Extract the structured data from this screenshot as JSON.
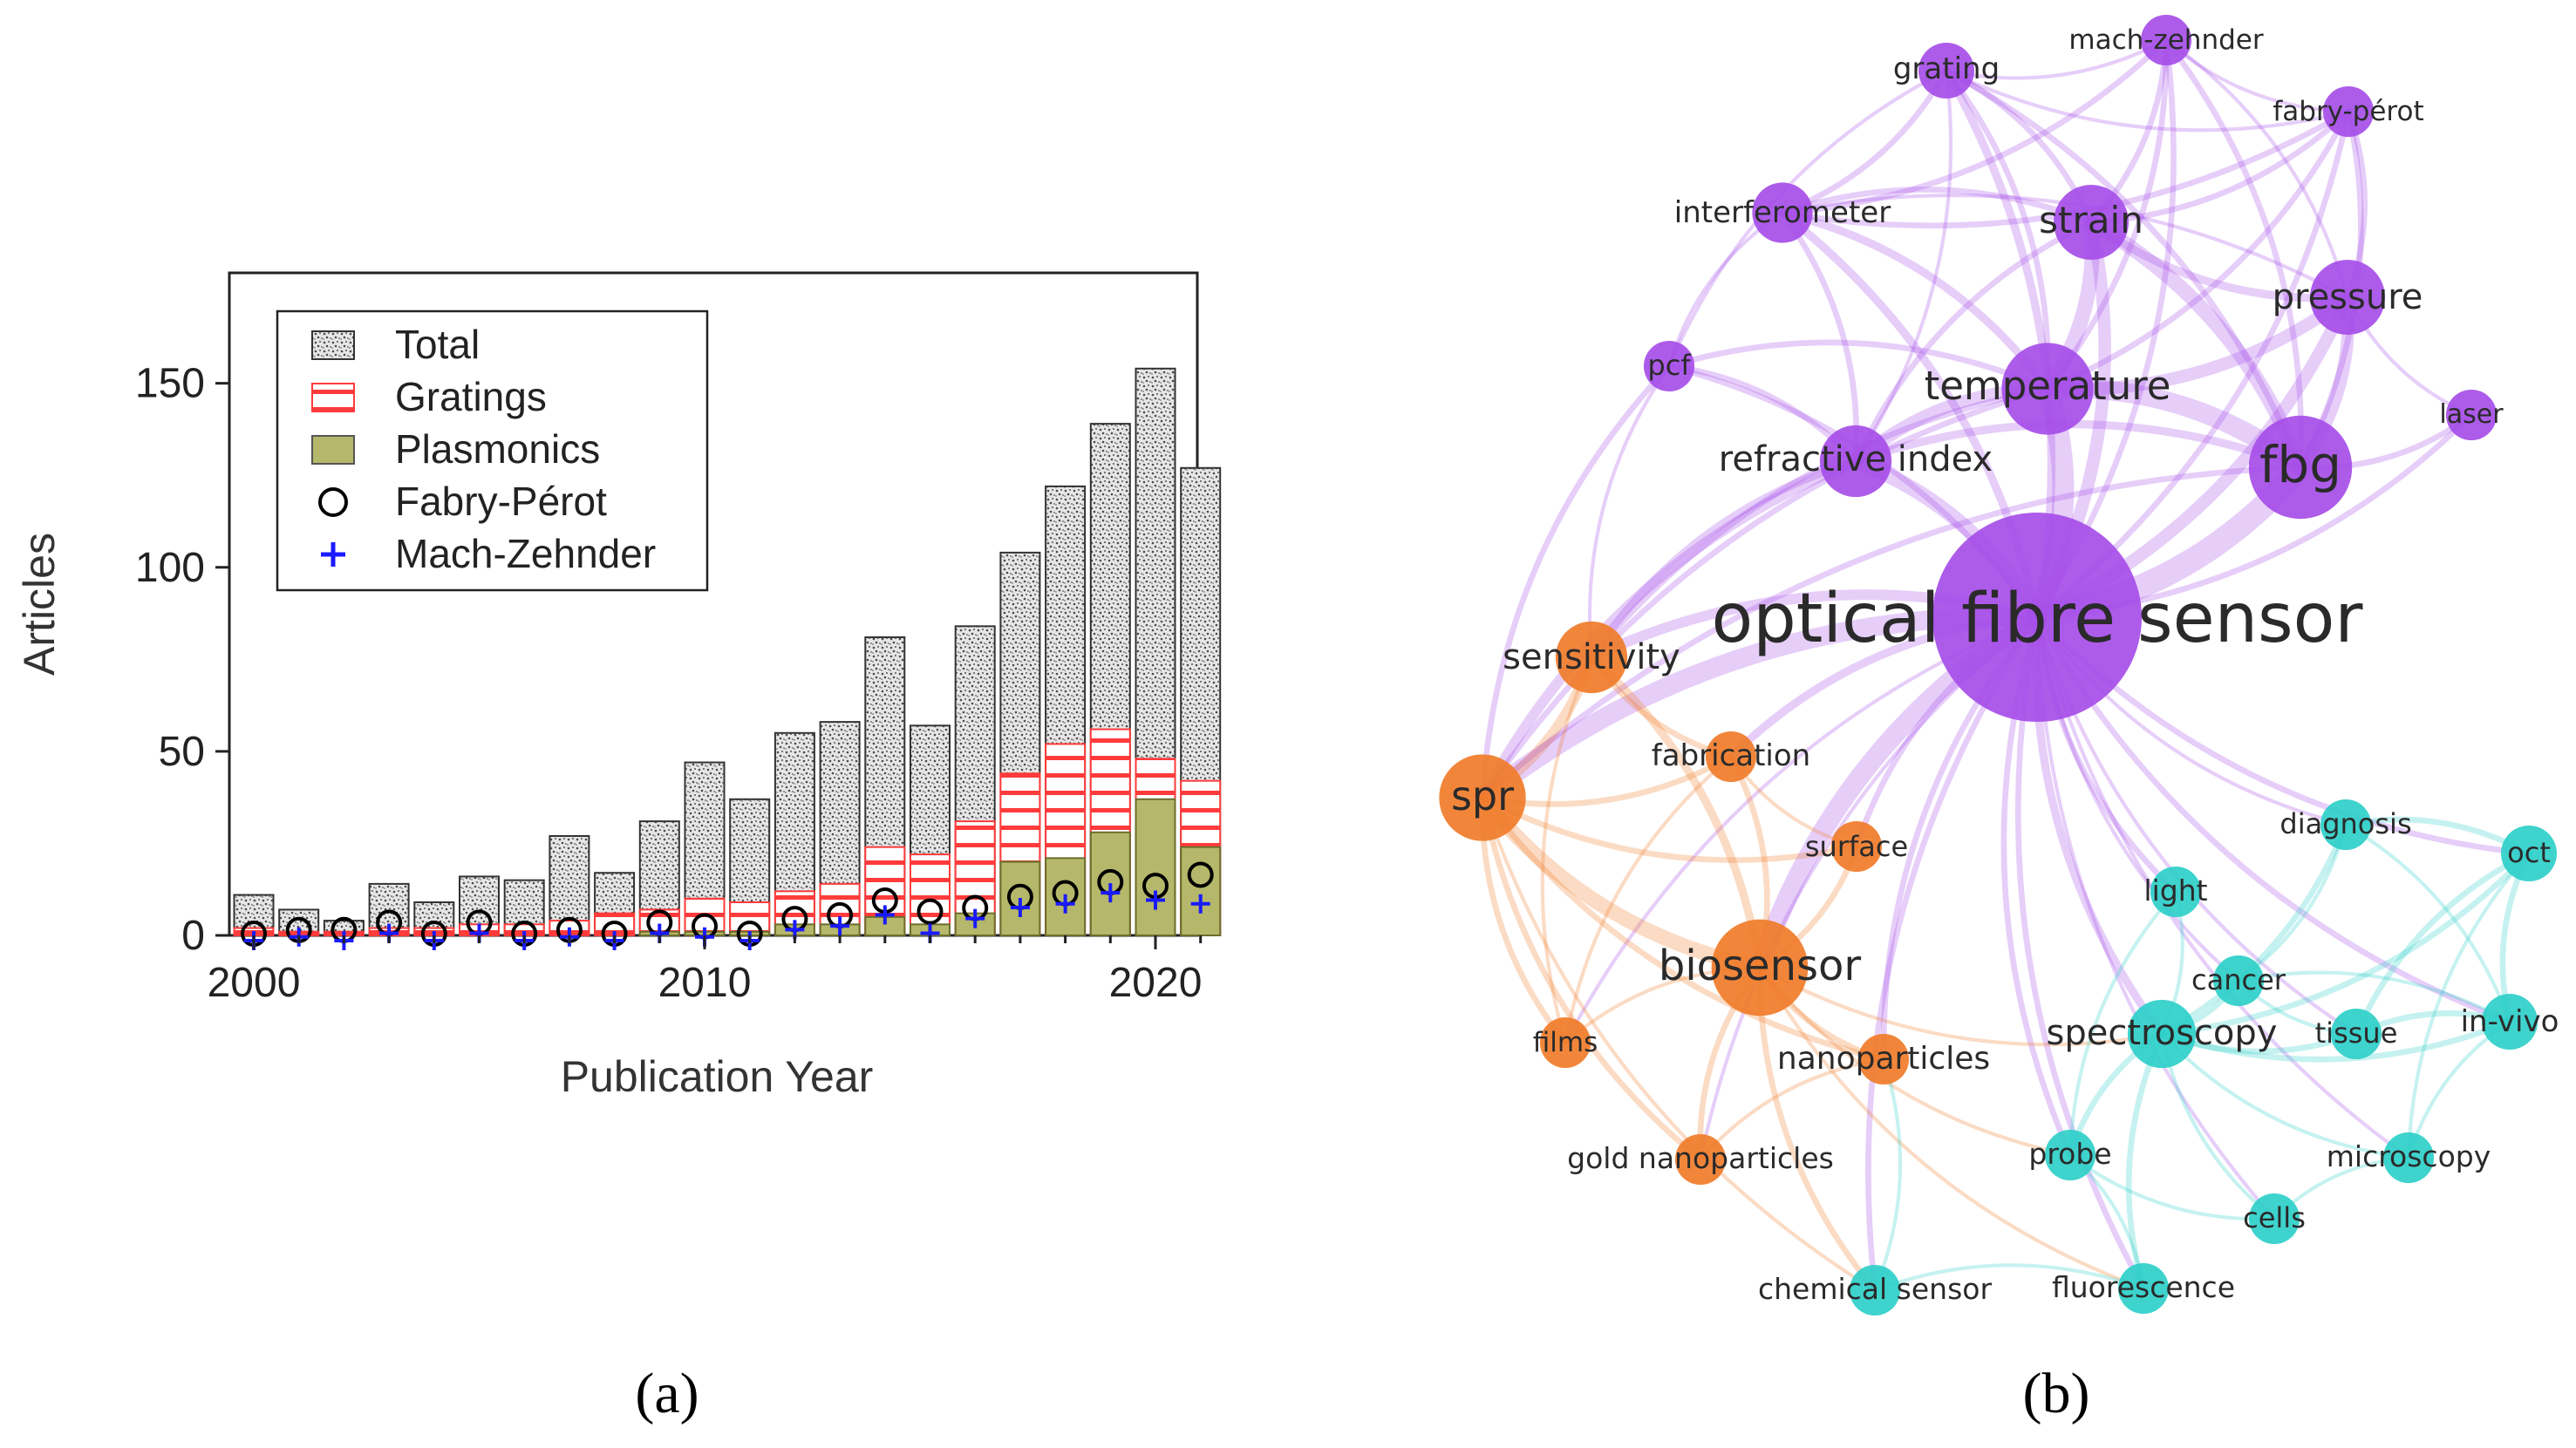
{
  "panel_a": {
    "label": "(a)"
  },
  "panel_b": {
    "label": "(b)"
  },
  "chart_data": {
    "type": "bar",
    "categories": [
      "2000",
      "2001",
      "2002",
      "2003",
      "2004",
      "2005",
      "2006",
      "2007",
      "2008",
      "2009",
      "2010",
      "2011",
      "2012",
      "2013",
      "2014",
      "2015",
      "2016",
      "2017",
      "2018",
      "2019",
      "2020",
      "2021"
    ],
    "x_ticks": [
      "2000",
      "2010",
      "2020"
    ],
    "y_ticks": [
      "0",
      "50",
      "100",
      "150"
    ],
    "xlabel": "Publication Year",
    "ylabel": "Articles",
    "ylim": [
      0,
      180
    ],
    "series": [
      {
        "name": "Total",
        "kind": "bar",
        "color": "#bdbdbd",
        "values": [
          11,
          7,
          4,
          14,
          9,
          16,
          15,
          27,
          17,
          31,
          47,
          37,
          55,
          58,
          81,
          57,
          84,
          104,
          122,
          139,
          154,
          127
        ]
      },
      {
        "name": "Gratings",
        "kind": "bar",
        "color": "#ff3b3b",
        "values": [
          2,
          1,
          1,
          2,
          2,
          3,
          3,
          4,
          6,
          7,
          10,
          9,
          12,
          14,
          24,
          22,
          31,
          44,
          52,
          56,
          48,
          42
        ]
      },
      {
        "name": "Plasmonics",
        "kind": "bar",
        "color": "#b5b76a",
        "values": [
          0,
          0,
          0,
          0,
          0,
          0,
          0,
          0,
          0,
          1,
          1,
          1,
          3,
          3,
          5,
          3,
          6,
          20,
          21,
          28,
          37,
          24
        ]
      },
      {
        "name": "Fabry-Pérot",
        "kind": "marker",
        "color": "#000000",
        "values": [
          0,
          1,
          1,
          3,
          0,
          3,
          0,
          1,
          0,
          3,
          2,
          0,
          4,
          5,
          9,
          6,
          7,
          10,
          11,
          14,
          13,
          16
        ]
      },
      {
        "name": "Mach-Zehnder",
        "kind": "marker",
        "color": "#1a1aff",
        "values": [
          0,
          1,
          0,
          2,
          0,
          2,
          0,
          1,
          0,
          2,
          1,
          0,
          3,
          4,
          7,
          2,
          6,
          9,
          10,
          13,
          11,
          10
        ]
      }
    ]
  },
  "network": {
    "colors": {
      "purple": "#a64ee8",
      "orange": "#f07c2a",
      "cyan": "#2ecfc9"
    },
    "nodes": [
      {
        "label": "optical fibre sensor",
        "group": "purple",
        "weight": 100
      },
      {
        "label": "fbg",
        "group": "purple",
        "weight": 20
      },
      {
        "label": "temperature",
        "group": "purple",
        "weight": 15
      },
      {
        "label": "strain",
        "group": "purple",
        "weight": 9
      },
      {
        "label": "pressure",
        "group": "purple",
        "weight": 9
      },
      {
        "label": "refractive index",
        "group": "purple",
        "weight": 8
      },
      {
        "label": "interferometer",
        "group": "purple",
        "weight": 5
      },
      {
        "label": "grating",
        "group": "purple",
        "weight": 4
      },
      {
        "label": "mach-zehnder",
        "group": "purple",
        "weight": 3
      },
      {
        "label": "fabry-pérot",
        "group": "purple",
        "weight": 3
      },
      {
        "label": "pcf",
        "group": "purple",
        "weight": 3
      },
      {
        "label": "laser",
        "group": "purple",
        "weight": 3
      },
      {
        "label": "sensitivity",
        "group": "orange",
        "weight": 8
      },
      {
        "label": "spr",
        "group": "orange",
        "weight": 13
      },
      {
        "label": "fabrication",
        "group": "orange",
        "weight": 3
      },
      {
        "label": "surface",
        "group": "orange",
        "weight": 3
      },
      {
        "label": "biosensor",
        "group": "orange",
        "weight": 17
      },
      {
        "label": "films",
        "group": "orange",
        "weight": 3
      },
      {
        "label": "nanoparticles",
        "group": "orange",
        "weight": 3
      },
      {
        "label": "gold nanoparticles",
        "group": "orange",
        "weight": 3
      },
      {
        "label": "chemical sensor",
        "group": "cyan",
        "weight": 3
      },
      {
        "label": "fluorescence",
        "group": "cyan",
        "weight": 3
      },
      {
        "label": "probe",
        "group": "cyan",
        "weight": 3
      },
      {
        "label": "cells",
        "group": "cyan",
        "weight": 3
      },
      {
        "label": "microscopy",
        "group": "cyan",
        "weight": 3
      },
      {
        "label": "spectroscopy",
        "group": "cyan",
        "weight": 7
      },
      {
        "label": "tissue",
        "group": "cyan",
        "weight": 3
      },
      {
        "label": "in-vivo",
        "group": "cyan",
        "weight": 4
      },
      {
        "label": "cancer",
        "group": "cyan",
        "weight": 3
      },
      {
        "label": "light",
        "group": "cyan",
        "weight": 3
      },
      {
        "label": "diagnosis",
        "group": "cyan",
        "weight": 3
      },
      {
        "label": "oct",
        "group": "cyan",
        "weight": 4
      }
    ],
    "edges": [
      [
        "optical fibre sensor",
        "fbg",
        10
      ],
      [
        "optical fibre sensor",
        "temperature",
        9
      ],
      [
        "optical fibre sensor",
        "strain",
        5
      ],
      [
        "optical fibre sensor",
        "pressure",
        5
      ],
      [
        "optical fibre sensor",
        "refractive index",
        6
      ],
      [
        "optical fibre sensor",
        "interferometer",
        3
      ],
      [
        "optical fibre sensor",
        "grating",
        3
      ],
      [
        "optical fibre sensor",
        "mach-zehnder",
        2
      ],
      [
        "optical fibre sensor",
        "fabry-pérot",
        2
      ],
      [
        "optical fibre sensor",
        "pcf",
        2
      ],
      [
        "optical fibre sensor",
        "laser",
        2
      ],
      [
        "optical fibre sensor",
        "sensitivity",
        4
      ],
      [
        "optical fibre sensor",
        "spr",
        8
      ],
      [
        "optical fibre sensor",
        "fabrication",
        3
      ],
      [
        "optical fibre sensor",
        "surface",
        2
      ],
      [
        "optical fibre sensor",
        "biosensor",
        8
      ],
      [
        "optical fibre sensor",
        "films",
        1
      ],
      [
        "optical fibre sensor",
        "nanoparticles",
        2
      ],
      [
        "optical fibre sensor",
        "gold nanoparticles",
        1
      ],
      [
        "optical fibre sensor",
        "chemical sensor",
        2
      ],
      [
        "optical fibre sensor",
        "fluorescence",
        2
      ],
      [
        "optical fibre sensor",
        "probe",
        2
      ],
      [
        "optical fibre sensor",
        "cells",
        1
      ],
      [
        "optical fibre sensor",
        "microscopy",
        1
      ],
      [
        "optical fibre sensor",
        "spectroscopy",
        3
      ],
      [
        "optical fibre sensor",
        "tissue",
        1
      ],
      [
        "optical fibre sensor",
        "in-vivo",
        2
      ],
      [
        "optical fibre sensor",
        "cancer",
        1
      ],
      [
        "optical fibre sensor",
        "light",
        2
      ],
      [
        "optical fibre sensor",
        "diagnosis",
        1
      ],
      [
        "optical fibre sensor",
        "oct",
        2
      ],
      [
        "fbg",
        "temperature",
        8
      ],
      [
        "fbg",
        "strain",
        6
      ],
      [
        "fbg",
        "pressure",
        5
      ],
      [
        "fbg",
        "refractive index",
        3
      ],
      [
        "fbg",
        "laser",
        2
      ],
      [
        "fbg",
        "fabry-pérot",
        2
      ],
      [
        "fbg",
        "grating",
        2
      ],
      [
        "fbg",
        "mach-zehnder",
        2
      ],
      [
        "fbg",
        "spr",
        2
      ],
      [
        "temperature",
        "strain",
        6
      ],
      [
        "temperature",
        "pressure",
        5
      ],
      [
        "temperature",
        "refractive index",
        5
      ],
      [
        "temperature",
        "interferometer",
        3
      ],
      [
        "temperature",
        "grating",
        2
      ],
      [
        "temperature",
        "pcf",
        2
      ],
      [
        "temperature",
        "mach-zehnder",
        2
      ],
      [
        "temperature",
        "fabry-pérot",
        2
      ],
      [
        "temperature",
        "spr",
        2
      ],
      [
        "temperature",
        "sensitivity",
        2
      ],
      [
        "strain",
        "pressure",
        3
      ],
      [
        "strain",
        "interferometer",
        2
      ],
      [
        "strain",
        "grating",
        2
      ],
      [
        "strain",
        "mach-zehnder",
        2
      ],
      [
        "strain",
        "fabry-pérot",
        2
      ],
      [
        "strain",
        "refractive index",
        2
      ],
      [
        "pressure",
        "fabry-pérot",
        2
      ],
      [
        "pressure",
        "laser",
        1
      ],
      [
        "pressure",
        "mach-zehnder",
        1
      ],
      [
        "pressure",
        "interferometer",
        1
      ],
      [
        "refractive index",
        "spr",
        4
      ],
      [
        "refractive index",
        "sensitivity",
        3
      ],
      [
        "refractive index",
        "interferometer",
        2
      ],
      [
        "refractive index",
        "pcf",
        2
      ],
      [
        "refractive index",
        "grating",
        1
      ],
      [
        "interferometer",
        "grating",
        2
      ],
      [
        "interferometer",
        "mach-zehnder",
        2
      ],
      [
        "interferometer",
        "fabry-pérot",
        2
      ],
      [
        "interferometer",
        "pcf",
        1
      ],
      [
        "grating",
        "mach-zehnder",
        1
      ],
      [
        "grating",
        "fabry-pérot",
        1
      ],
      [
        "grating",
        "pcf",
        1
      ],
      [
        "mach-zehnder",
        "fabry-pérot",
        1
      ],
      [
        "pcf",
        "spr",
        2
      ],
      [
        "pcf",
        "sensitivity",
        1
      ],
      [
        "spr",
        "biosensor",
        6
      ],
      [
        "spr",
        "sensitivity",
        4
      ],
      [
        "spr",
        "fabrication",
        2
      ],
      [
        "spr",
        "films",
        2
      ],
      [
        "spr",
        "nanoparticles",
        2
      ],
      [
        "spr",
        "gold nanoparticles",
        2
      ],
      [
        "spr",
        "surface",
        2
      ],
      [
        "spr",
        "chemical sensor",
        1
      ],
      [
        "biosensor",
        "sensitivity",
        3
      ],
      [
        "biosensor",
        "fabrication",
        2
      ],
      [
        "biosensor",
        "surface",
        2
      ],
      [
        "biosensor",
        "nanoparticles",
        2
      ],
      [
        "biosensor",
        "gold nanoparticles",
        2
      ],
      [
        "biosensor",
        "films",
        1
      ],
      [
        "biosensor",
        "chemical sensor",
        2
      ],
      [
        "biosensor",
        "fluorescence",
        1
      ],
      [
        "biosensor",
        "probe",
        1
      ],
      [
        "biosensor",
        "spectroscopy",
        1
      ],
      [
        "sensitivity",
        "fabrication",
        2
      ],
      [
        "sensitivity",
        "films",
        1
      ],
      [
        "fabrication",
        "surface",
        1
      ],
      [
        "fabrication",
        "films",
        1
      ],
      [
        "nanoparticles",
        "gold nanoparticles",
        1
      ],
      [
        "spectroscopy",
        "tissue",
        2
      ],
      [
        "spectroscopy",
        "in-vivo",
        2
      ],
      [
        "spectroscopy",
        "cancer",
        2
      ],
      [
        "spectroscopy",
        "diagnosis",
        2
      ],
      [
        "spectroscopy",
        "light",
        1
      ],
      [
        "spectroscopy",
        "probe",
        2
      ],
      [
        "spectroscopy",
        "fluorescence",
        2
      ],
      [
        "spectroscopy",
        "microscopy",
        1
      ],
      [
        "spectroscopy",
        "cells",
        1
      ],
      [
        "spectroscopy",
        "oct",
        2
      ],
      [
        "oct",
        "in-vivo",
        2
      ],
      [
        "oct",
        "tissue",
        2
      ],
      [
        "oct",
        "diagnosis",
        2
      ],
      [
        "oct",
        "microscopy",
        1
      ],
      [
        "in-vivo",
        "tissue",
        2
      ],
      [
        "in-vivo",
        "microscopy",
        1
      ],
      [
        "in-vivo",
        "cancer",
        1
      ],
      [
        "in-vivo",
        "diagnosis",
        1
      ],
      [
        "cancer",
        "diagnosis",
        1
      ],
      [
        "cancer",
        "tissue",
        1
      ],
      [
        "microscopy",
        "cells",
        1
      ],
      [
        "fluorescence",
        "probe",
        1
      ],
      [
        "fluorescence",
        "chemical sensor",
        1
      ],
      [
        "probe",
        "cells",
        1
      ],
      [
        "light",
        "probe",
        1
      ],
      [
        "chemical sensor",
        "nanoparticles",
        1
      ]
    ]
  }
}
